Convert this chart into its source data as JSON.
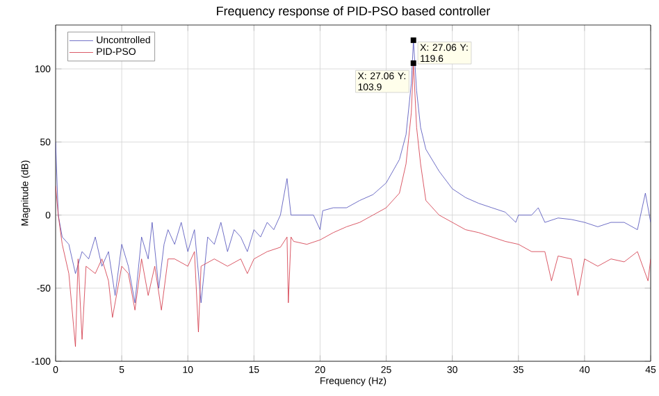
{
  "chart_data": {
    "type": "line",
    "title": "Frequency response of PID-PSO based controller",
    "xlabel": "Frequency (Hz)",
    "ylabel": "Magnitude (dB)",
    "xlim": [
      0,
      45
    ],
    "ylim": [
      -100,
      130
    ],
    "xticks": [
      0,
      5,
      10,
      15,
      20,
      25,
      30,
      35,
      40,
      45
    ],
    "yticks": [
      -100,
      -50,
      0,
      50,
      100
    ],
    "grid": true,
    "legend": "top left",
    "line_style": "solid",
    "marker": "none",
    "series": [
      {
        "name": "Uncontrolled",
        "color": "#4a4ab8",
        "x": [
          0,
          0.2,
          0.5,
          1,
          1.5,
          2,
          2.5,
          3,
          3.5,
          4,
          4.5,
          5,
          5.5,
          6,
          6.5,
          7,
          7.3,
          7.8,
          8.2,
          8.5,
          9,
          9.5,
          10,
          10.5,
          11,
          11.5,
          12,
          12.5,
          13,
          13.5,
          14,
          14.5,
          15,
          15.5,
          16,
          16.5,
          17,
          17.5,
          17.8,
          18.5,
          19.5,
          20,
          20.2,
          21,
          22,
          23,
          24,
          25,
          26,
          26.5,
          26.9,
          27.06,
          27.3,
          27.6,
          28,
          29,
          30,
          31,
          32,
          33,
          34,
          34.8,
          35,
          36,
          36.5,
          37,
          38,
          39,
          40,
          41,
          42,
          43,
          44,
          44.6,
          45
        ],
        "values": [
          50,
          0,
          -15,
          -20,
          -40,
          -25,
          -30,
          -15,
          -35,
          -25,
          -55,
          -20,
          -35,
          -60,
          -15,
          -30,
          -5,
          -50,
          -20,
          -10,
          -20,
          -5,
          -25,
          -10,
          -60,
          -15,
          -20,
          -5,
          -25,
          -10,
          -15,
          -25,
          -10,
          -15,
          -5,
          -10,
          0,
          25,
          0,
          0,
          0,
          -10,
          3,
          5,
          5,
          10,
          14,
          22,
          38,
          55,
          90,
          119.6,
          85,
          60,
          45,
          30,
          18,
          12,
          8,
          5,
          2,
          -5,
          0,
          0,
          5,
          -5,
          -2,
          -3,
          -5,
          -8,
          -5,
          -5,
          -10,
          15,
          -5
        ]
      },
      {
        "name": "PID-PSO",
        "color": "#d03040",
        "x": [
          0,
          0.2,
          0.5,
          1,
          1.5,
          1.7,
          2,
          2.3,
          3,
          3.5,
          4,
          4.3,
          5,
          5.5,
          6,
          6.5,
          7,
          7.5,
          8,
          8.5,
          9,
          10,
          10.5,
          10.8,
          11,
          12,
          13,
          14,
          14.5,
          15,
          16,
          17,
          17.5,
          17.6,
          17.8,
          18,
          19,
          20,
          21,
          22,
          23,
          24,
          25,
          26,
          26.5,
          26.9,
          27.06,
          27.3,
          27.6,
          28,
          29,
          30,
          31,
          32,
          33,
          34,
          35,
          36,
          37,
          37.5,
          38,
          39,
          39.5,
          40,
          41,
          42,
          43,
          44,
          44.8,
          45
        ],
        "values": [
          20,
          0,
          -20,
          -40,
          -90,
          -30,
          -85,
          -35,
          -40,
          -30,
          -45,
          -70,
          -35,
          -40,
          -65,
          -30,
          -55,
          -35,
          -65,
          -30,
          -30,
          -35,
          -25,
          -80,
          -35,
          -30,
          -35,
          -30,
          -40,
          -30,
          -25,
          -22,
          -15,
          -60,
          -15,
          -18,
          -20,
          -17,
          -12,
          -8,
          -5,
          0,
          5,
          15,
          35,
          70,
          103.9,
          60,
          35,
          10,
          0,
          -5,
          -10,
          -12,
          -15,
          -18,
          -20,
          -25,
          -25,
          -45,
          -28,
          -30,
          -55,
          -30,
          -35,
          -30,
          -32,
          -25,
          -45,
          -30
        ]
      }
    ],
    "annotations": [
      {
        "text": "X: 27.06 Y: 119.6",
        "x": 27.06,
        "y": 119.6
      },
      {
        "text": "X: 27.06 Y: 103.9",
        "x": 27.06,
        "y": 103.9
      }
    ]
  }
}
